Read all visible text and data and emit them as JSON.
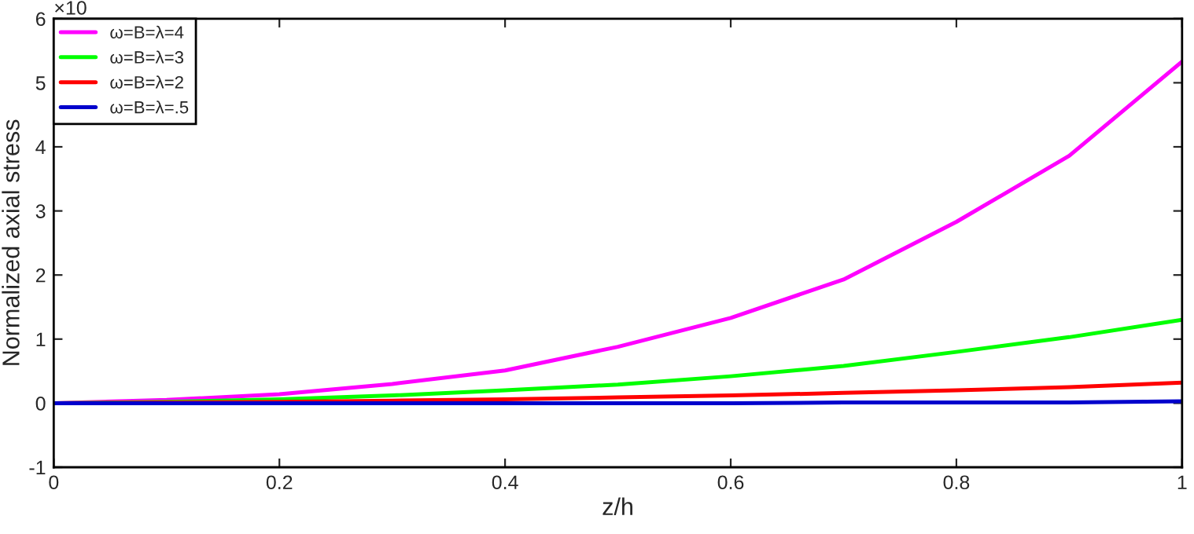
{
  "chart_data": {
    "type": "line",
    "xlabel": "z/h",
    "ylabel": "Normalized axial stress",
    "annotations": [
      "×10"
    ],
    "xlim": [
      0,
      1
    ],
    "ylim": [
      -1,
      6
    ],
    "xticks": [
      0,
      0.2,
      0.4,
      0.6,
      0.8,
      1
    ],
    "yticks": [
      -1,
      0,
      1,
      2,
      3,
      4,
      5,
      6
    ],
    "grid": false,
    "legend": "top left",
    "series": [
      {
        "name": "ω=B=λ=4",
        "color": "#ff00ff",
        "x": [
          0,
          0.1,
          0.2,
          0.3,
          0.4,
          0.5,
          0.6,
          0.7,
          0.8,
          0.9,
          1
        ],
        "values": [
          0,
          0.05,
          0.14,
          0.3,
          0.51,
          0.88,
          1.33,
          1.93,
          2.83,
          3.86,
          5.33
        ]
      },
      {
        "name": "ω=B=λ=3",
        "color": "#00ff00",
        "x": [
          0,
          0.1,
          0.2,
          0.3,
          0.4,
          0.5,
          0.6,
          0.7,
          0.8,
          0.9,
          1
        ],
        "values": [
          0,
          0.02,
          0.06,
          0.12,
          0.2,
          0.29,
          0.42,
          0.58,
          0.8,
          1.03,
          1.3
        ]
      },
      {
        "name": "ω=B=λ=2",
        "color": "#ff0000",
        "x": [
          0,
          0.1,
          0.2,
          0.3,
          0.4,
          0.5,
          0.6,
          0.7,
          0.8,
          0.9,
          1
        ],
        "values": [
          0,
          0.01,
          0.02,
          0.04,
          0.06,
          0.09,
          0.12,
          0.16,
          0.2,
          0.25,
          0.32
        ]
      },
      {
        "name": "ω=B=λ=.5",
        "color": "#0000cc",
        "x": [
          0,
          0.1,
          0.2,
          0.3,
          0.4,
          0.5,
          0.6,
          0.7,
          0.8,
          0.9,
          1
        ],
        "values": [
          0,
          0,
          0,
          0,
          0,
          0,
          0,
          0.01,
          0.01,
          0.01,
          0.03
        ]
      }
    ]
  }
}
